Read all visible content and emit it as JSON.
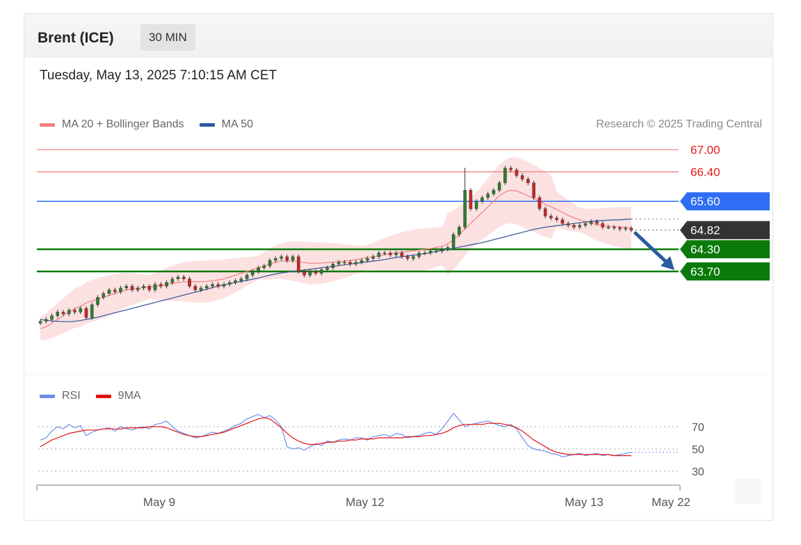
{
  "header": {
    "instrument": "Brent (ICE)",
    "interval": "30 MIN",
    "datetime": "Tuesday, May 13, 2025 7:10:15 AM CET",
    "copyright": "Research © 2025 Trading Central"
  },
  "legend_main": [
    {
      "label": "MA 20 + Bollinger Bands",
      "color": "#f08080"
    },
    {
      "label": "MA 50",
      "color": "#2c5aa0"
    }
  ],
  "legend_rsi": [
    {
      "label": "RSI",
      "color": "#6b8ee8"
    },
    {
      "label": "9MA",
      "color": "#e01010"
    }
  ],
  "chart_data": [
    {
      "type": "candlestick",
      "ylim": [
        62.0,
        67.4
      ],
      "levels": [
        {
          "value": 67.0,
          "label": "67.00",
          "kind": "resistance",
          "color": "#f08080"
        },
        {
          "value": 66.4,
          "label": "66.40",
          "kind": "resistance",
          "color": "#f08080"
        },
        {
          "value": 65.6,
          "label": "65.60",
          "kind": "pivot",
          "color": "#2f6df5"
        },
        {
          "value": 64.82,
          "label": "64.82",
          "kind": "last",
          "color": "#333333"
        },
        {
          "value": 64.3,
          "label": "64.30",
          "kind": "support",
          "color": "#0a7a0a"
        },
        {
          "value": 63.7,
          "label": "63.70",
          "kind": "support",
          "color": "#0a7a0a"
        }
      ],
      "x_ticks": [
        "May 9",
        "May 12",
        "May 13",
        "May 22"
      ],
      "close": [
        62.35,
        62.4,
        62.5,
        62.6,
        62.55,
        62.65,
        62.6,
        62.7,
        62.45,
        62.8,
        63.0,
        63.1,
        63.2,
        63.15,
        63.25,
        63.3,
        63.2,
        63.25,
        63.3,
        63.2,
        63.35,
        63.3,
        63.4,
        63.5,
        63.55,
        63.5,
        63.3,
        63.2,
        63.25,
        63.3,
        63.35,
        63.3,
        63.35,
        63.4,
        63.45,
        63.5,
        63.6,
        63.7,
        63.8,
        63.85,
        64.0,
        64.05,
        64.1,
        64.0,
        64.1,
        63.7,
        63.6,
        63.7,
        63.65,
        63.75,
        63.8,
        63.9,
        63.95,
        63.95,
        63.9,
        63.95,
        64.0,
        64.05,
        64.1,
        64.2,
        64.2,
        64.15,
        64.2,
        64.1,
        64.05,
        64.1,
        64.2,
        64.2,
        64.25,
        64.25,
        64.3,
        64.35,
        64.7,
        64.9,
        65.9,
        65.4,
        65.6,
        65.7,
        65.8,
        65.9,
        66.1,
        66.5,
        66.45,
        66.3,
        66.2,
        66.1,
        65.7,
        65.4,
        65.2,
        65.15,
        65.1,
        65.0,
        64.95,
        64.9,
        64.95,
        65.0,
        65.05,
        65.0,
        64.9,
        64.9,
        64.88,
        64.85,
        64.87,
        64.82
      ],
      "ma20": [
        62.15,
        62.2,
        62.3,
        62.4,
        62.5,
        62.6,
        62.7,
        62.75,
        62.85,
        62.9,
        62.95,
        63.0,
        63.05,
        63.1,
        63.15,
        63.2,
        63.22,
        63.24,
        63.26,
        63.28,
        63.3,
        63.32,
        63.35,
        63.38,
        63.4,
        63.42,
        63.42,
        63.42,
        63.42,
        63.43,
        63.45,
        63.47,
        63.5,
        63.55,
        63.6,
        63.65,
        63.7,
        63.75,
        63.8,
        63.85,
        63.9,
        63.95,
        63.98,
        63.98,
        63.98,
        63.96,
        63.94,
        63.92,
        63.92,
        63.93,
        63.94,
        63.95,
        63.97,
        63.98,
        64.0,
        64.02,
        64.05,
        64.08,
        64.1,
        64.12,
        64.15,
        64.18,
        64.2,
        64.22,
        64.24,
        64.26,
        64.28,
        64.3,
        64.32,
        64.35,
        64.38,
        64.45,
        64.55,
        64.7,
        64.85,
        65.0,
        65.15,
        65.3,
        65.45,
        65.6,
        65.75,
        65.85,
        65.9,
        65.88,
        65.82,
        65.75,
        65.68,
        65.6,
        65.52,
        65.45,
        65.38,
        65.3,
        65.22,
        65.15,
        65.1,
        65.05,
        65.0,
        64.97,
        64.95,
        64.93,
        64.92,
        64.9,
        64.89,
        64.88
      ],
      "ma50": [
        62.4,
        62.38,
        62.36,
        62.35,
        62.34,
        62.34,
        62.35,
        62.37,
        62.4,
        62.43,
        62.46,
        62.5,
        62.54,
        62.58,
        62.62,
        62.66,
        62.7,
        62.74,
        62.78,
        62.82,
        62.86,
        62.9,
        62.94,
        62.98,
        63.02,
        63.06,
        63.1,
        63.14,
        63.18,
        63.22,
        63.26,
        63.3,
        63.34,
        63.37,
        63.4,
        63.43,
        63.46,
        63.49,
        63.52,
        63.56,
        63.6,
        63.63,
        63.66,
        63.68,
        63.7,
        63.72,
        63.74,
        63.76,
        63.78,
        63.8,
        63.82,
        63.84,
        63.86,
        63.88,
        63.9,
        63.92,
        63.94,
        63.96,
        63.98,
        64.0,
        64.02,
        64.05,
        64.08,
        64.1,
        64.12,
        64.14,
        64.16,
        64.18,
        64.21,
        64.24,
        64.27,
        64.3,
        64.33,
        64.36,
        64.39,
        64.42,
        64.45,
        64.48,
        64.52,
        64.56,
        64.6,
        64.64,
        64.68,
        64.72,
        64.76,
        64.8,
        64.84,
        64.87,
        64.9,
        64.92,
        64.94,
        64.96,
        64.98,
        65.0,
        65.02,
        65.04,
        65.06,
        65.07,
        65.08,
        65.09,
        65.1,
        65.1,
        65.11,
        65.12
      ]
    },
    {
      "type": "line",
      "ylim": [
        28,
        84
      ],
      "y_ticks": [
        70,
        50,
        30
      ],
      "series": [
        {
          "name": "RSI",
          "values": [
            58,
            60,
            66,
            70,
            68,
            72,
            69,
            71,
            62,
            65,
            67,
            68,
            69,
            66,
            70,
            68,
            67,
            69,
            70,
            68,
            72,
            73,
            75,
            70,
            66,
            64,
            62,
            60,
            61,
            63,
            65,
            64,
            66,
            68,
            71,
            73,
            77,
            79,
            81,
            78,
            80,
            76,
            70,
            52,
            50,
            51,
            49,
            52,
            55,
            53,
            57,
            56,
            58,
            59,
            58,
            60,
            60,
            58,
            61,
            62,
            63,
            61,
            64,
            63,
            60,
            61,
            62,
            64,
            65,
            63,
            68,
            75,
            82,
            76,
            70,
            72,
            73,
            74,
            75,
            73,
            71,
            70,
            72,
            68,
            60,
            53,
            50,
            49,
            48,
            46,
            45,
            43,
            44,
            45,
            46,
            44,
            45,
            46,
            44,
            45,
            44,
            45,
            46,
            47
          ]
        },
        {
          "name": "9MA",
          "values": [
            52,
            55,
            58,
            60,
            62,
            64,
            65,
            66,
            67,
            67,
            67,
            68,
            68,
            68,
            68,
            69,
            69,
            69,
            69,
            70,
            70,
            70,
            69,
            67,
            65,
            63,
            62,
            61,
            61,
            62,
            63,
            64,
            65,
            67,
            69,
            71,
            73,
            75,
            77,
            78,
            77,
            73,
            69,
            64,
            60,
            57,
            55,
            54,
            54,
            55,
            56,
            56,
            57,
            57,
            58,
            58,
            59,
            59,
            59,
            60,
            60,
            60,
            60,
            60,
            61,
            61,
            61,
            62,
            62,
            63,
            64,
            66,
            69,
            71,
            72,
            72,
            72,
            72,
            73,
            73,
            73,
            72,
            71,
            69,
            66,
            62,
            58,
            55,
            52,
            49,
            47,
            46,
            45,
            45,
            45,
            45,
            45,
            45,
            45,
            45,
            44,
            44,
            44,
            44
          ]
        }
      ]
    }
  ]
}
